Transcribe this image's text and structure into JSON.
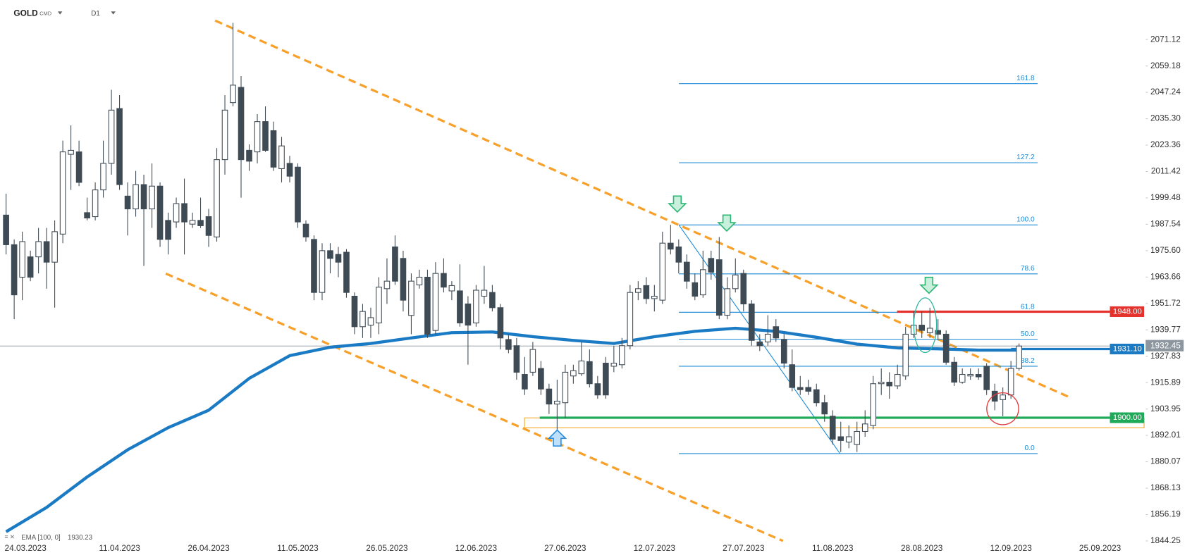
{
  "header": {
    "symbol": "GOLD",
    "market": "CMD",
    "interval": "D1"
  },
  "chart_data": {
    "type": "candlestick",
    "categories": [
      "24.03.2023",
      null,
      null,
      null,
      null,
      null,
      null,
      null,
      null,
      null,
      null,
      null,
      null,
      null,
      "11.04.2023",
      null,
      null,
      null,
      null,
      null,
      null,
      null,
      null,
      null,
      null,
      "26.04.2023",
      null,
      null,
      null,
      null,
      null,
      null,
      null,
      null,
      null,
      null,
      "11.05.2023",
      null,
      null,
      null,
      null,
      null,
      null,
      null,
      null,
      null,
      null,
      "26.05.2023",
      null,
      null,
      null,
      null,
      null,
      null,
      null,
      null,
      null,
      null,
      "12.06.2023",
      null,
      null,
      null,
      null,
      null,
      null,
      null,
      null,
      null,
      null,
      "27.06.2023",
      null,
      null,
      null,
      null,
      null,
      null,
      null,
      null,
      null,
      null,
      "12.07.2023",
      null,
      null,
      null,
      null,
      null,
      null,
      null,
      null,
      null,
      null,
      "27.07.2023",
      null,
      null,
      null,
      null,
      null,
      null,
      null,
      null,
      null,
      null,
      "11.08.2023",
      null,
      null,
      null,
      null,
      null,
      null,
      null,
      null,
      null,
      null,
      "28.08.2023",
      null,
      null,
      null,
      null,
      null,
      null,
      null,
      null,
      null,
      null,
      "12.09.2023",
      null,
      null,
      null,
      null,
      null,
      null,
      null,
      null,
      null,
      null,
      "25.09.2023"
    ],
    "values": [
      [
        1991.7,
        2001.4,
        1973.9,
        1978.3
      ],
      [
        1978.3,
        1980.7,
        1944.6,
        1955.6
      ],
      [
        1963.6,
        1984.2,
        1953.2,
        1979.7
      ],
      [
        1972.8,
        1975.6,
        1961.8,
        1963.6
      ],
      [
        1972.8,
        1985.9,
        1965.3,
        1979.7
      ],
      [
        1979.7,
        1985.9,
        1958.4,
        1970.4
      ],
      [
        1970.4,
        1989.3,
        1949.8,
        1984.2
      ],
      [
        1983.1,
        2025.4,
        1979.0,
        2020.3
      ],
      [
        2019.2,
        2032.3,
        2003.1,
        2021.0
      ],
      [
        2020.3,
        2025.4,
        2004.8,
        2006.5
      ],
      [
        1992.8,
        1999.6,
        1989.3,
        1990.4
      ],
      [
        1991.0,
        2006.5,
        1989.3,
        2003.1
      ],
      [
        2003.1,
        2025.4,
        1999.6,
        2015.1
      ],
      [
        2015.1,
        2048.4,
        2010.0,
        2039.2
      ],
      [
        2039.9,
        2046.0,
        2003.1,
        2005.5
      ],
      [
        2000.3,
        2006.5,
        1982.5,
        1994.5
      ],
      [
        1994.5,
        2011.7,
        1991.0,
        2005.5
      ],
      [
        2005.5,
        2010.0,
        1968.7,
        1994.5
      ],
      [
        1994.5,
        2015.1,
        1985.9,
        2004.8
      ],
      [
        2004.8,
        2006.5,
        1977.3,
        1980.7
      ],
      [
        1989.3,
        1992.8,
        1973.9,
        1980.7
      ],
      [
        1988.6,
        1999.6,
        1985.9,
        1996.9
      ],
      [
        1996.9,
        2008.2,
        1973.9,
        1988.6
      ],
      [
        1987.6,
        1992.8,
        1985.9,
        1989.3
      ],
      [
        1989.3,
        1999.6,
        1985.9,
        1986.9
      ],
      [
        1991.0,
        1994.5,
        1977.3,
        1982.5
      ],
      [
        1981.8,
        2022.0,
        1979.7,
        2016.8
      ],
      [
        2016.8,
        2046.0,
        2010.0,
        2039.2
      ],
      [
        2042.6,
        2078.7,
        2040.9,
        2050.5
      ],
      [
        2049.5,
        2054.6,
        1999.6,
        2016.8
      ],
      [
        2021.0,
        2023.7,
        2011.7,
        2016.1
      ],
      [
        2020.3,
        2037.4,
        2015.1,
        2034.0
      ],
      [
        2034.0,
        2040.9,
        2020.3,
        2021.0
      ],
      [
        2029.9,
        2034.0,
        2011.7,
        2013.4
      ],
      [
        2012.7,
        2027.1,
        2006.5,
        2023.0
      ],
      [
        2015.1,
        2018.5,
        2006.5,
        2009.3
      ],
      [
        2013.4,
        2015.1,
        1985.9,
        1988.6
      ],
      [
        1987.6,
        1989.3,
        1979.7,
        1981.8
      ],
      [
        1980.7,
        1982.5,
        1953.2,
        1956.7
      ],
      [
        1956.7,
        1979.0,
        1953.2,
        1975.6
      ],
      [
        1975.6,
        1979.0,
        1965.3,
        1972.1
      ],
      [
        1973.9,
        1977.3,
        1963.6,
        1970.4
      ],
      [
        1974.9,
        1976.3,
        1954.3,
        1956.7
      ],
      [
        1955.0,
        1956.7,
        1937.8,
        1941.2
      ],
      [
        1941.2,
        1951.5,
        1936.1,
        1948.1
      ],
      [
        1941.9,
        1949.8,
        1936.1,
        1945.3
      ],
      [
        1942.9,
        1963.6,
        1937.8,
        1959.1
      ],
      [
        1958.4,
        1972.1,
        1951.5,
        1961.8
      ],
      [
        1977.3,
        1982.5,
        1960.1,
        1961.8
      ],
      [
        1972.1,
        1975.6,
        1948.1,
        1953.2
      ],
      [
        1946.3,
        1965.3,
        1937.8,
        1961.8
      ],
      [
        1960.1,
        1967.0,
        1958.4,
        1963.6
      ],
      [
        1963.6,
        1967.0,
        1936.1,
        1937.8
      ],
      [
        1939.5,
        1970.4,
        1937.8,
        1965.3
      ],
      [
        1965.3,
        1972.1,
        1956.7,
        1959.1
      ],
      [
        1957.4,
        1961.8,
        1953.2,
        1959.8
      ],
      [
        1957.4,
        1969.4,
        1941.2,
        1942.9
      ],
      [
        1951.5,
        1955.0,
        1924.0,
        1941.9
      ],
      [
        1942.9,
        1960.1,
        1941.2,
        1957.7
      ],
      [
        1955.0,
        1968.7,
        1951.5,
        1957.7
      ],
      [
        1956.7,
        1960.1,
        1948.1,
        1949.8
      ],
      [
        1949.8,
        1951.5,
        1930.9,
        1936.1
      ],
      [
        1935.4,
        1937.8,
        1929.2,
        1930.9
      ],
      [
        1932.6,
        1936.1,
        1917.2,
        1920.6
      ],
      [
        1919.6,
        1927.5,
        1910.3,
        1913.0
      ],
      [
        1920.6,
        1934.3,
        1918.9,
        1930.9
      ],
      [
        1922.3,
        1925.7,
        1910.3,
        1913.0
      ],
      [
        1913.0,
        1915.4,
        1901.7,
        1906.2
      ],
      [
        1906.2,
        1917.2,
        1887.9,
        1907.5
      ],
      [
        1906.8,
        1924.0,
        1899.9,
        1920.6
      ],
      [
        1918.9,
        1924.0,
        1915.4,
        1921.3
      ],
      [
        1919.9,
        1934.3,
        1918.9,
        1925.7
      ],
      [
        1925.4,
        1930.9,
        1913.7,
        1915.4
      ],
      [
        1915.4,
        1918.9,
        1908.6,
        1910.3
      ],
      [
        1924.7,
        1927.5,
        1908.6,
        1910.3
      ],
      [
        1923.3,
        1932.6,
        1920.6,
        1924.7
      ],
      [
        1924.0,
        1936.1,
        1922.3,
        1932.6
      ],
      [
        1932.6,
        1960.1,
        1930.9,
        1956.7
      ],
      [
        1956.7,
        1961.8,
        1953.2,
        1958.4
      ],
      [
        1959.8,
        1963.6,
        1951.5,
        1953.9
      ],
      [
        1953.9,
        1960.1,
        1948.1,
        1955.0
      ],
      [
        1953.2,
        1984.2,
        1951.5,
        1979.0
      ],
      [
        1979.0,
        1987.3,
        1973.9,
        1976.3
      ],
      [
        1977.3,
        1980.7,
        1965.3,
        1970.4
      ],
      [
        1970.4,
        1973.9,
        1958.4,
        1961.8
      ],
      [
        1961.1,
        1965.3,
        1953.2,
        1955.0
      ],
      [
        1955.6,
        1975.6,
        1954.3,
        1967.0
      ],
      [
        1972.1,
        1975.6,
        1962.5,
        1965.9
      ],
      [
        1971.5,
        1981.8,
        1944.6,
        1946.4
      ],
      [
        1946.4,
        1963.6,
        1944.6,
        1958.4
      ],
      [
        1958.4,
        1972.1,
        1956.7,
        1964.6
      ],
      [
        1965.3,
        1967.0,
        1948.1,
        1951.5
      ],
      [
        1951.5,
        1953.2,
        1932.6,
        1935.0
      ],
      [
        1934.3,
        1937.8,
        1930.2,
        1932.6
      ],
      [
        1934.3,
        1946.4,
        1932.6,
        1937.8
      ],
      [
        1941.2,
        1944.6,
        1934.3,
        1936.1
      ],
      [
        1935.4,
        1937.8,
        1922.3,
        1924.7
      ],
      [
        1924.0,
        1930.9,
        1912.0,
        1913.7
      ],
      [
        1913.7,
        1918.9,
        1910.3,
        1912.7
      ],
      [
        1913.7,
        1917.2,
        1910.3,
        1912.0
      ],
      [
        1912.7,
        1915.4,
        1905.1,
        1906.8
      ],
      [
        1906.8,
        1910.3,
        1898.2,
        1901.7
      ],
      [
        1900.7,
        1903.4,
        1887.9,
        1890.3
      ],
      [
        1891.4,
        1898.2,
        1884.5,
        1889.7
      ],
      [
        1889.0,
        1896.5,
        1886.2,
        1891.4
      ],
      [
        1887.9,
        1898.2,
        1884.5,
        1893.8
      ],
      [
        1893.8,
        1903.4,
        1891.4,
        1897.2
      ],
      [
        1896.5,
        1918.9,
        1894.8,
        1915.4
      ],
      [
        1915.4,
        1922.3,
        1910.3,
        1916.1
      ],
      [
        1916.1,
        1920.6,
        1908.6,
        1914.4
      ],
      [
        1914.4,
        1924.0,
        1913.0,
        1919.6
      ],
      [
        1918.9,
        1941.2,
        1917.2,
        1937.8
      ],
      [
        1937.8,
        1948.1,
        1936.1,
        1941.9
      ],
      [
        1941.9,
        1948.1,
        1936.1,
        1939.5
      ],
      [
        1938.5,
        1949.8,
        1936.1,
        1940.5
      ],
      [
        1939.5,
        1944.6,
        1935.0,
        1937.8
      ],
      [
        1937.8,
        1939.5,
        1924.0,
        1925.1
      ],
      [
        1925.1,
        1927.5,
        1914.4,
        1916.1
      ],
      [
        1916.1,
        1922.3,
        1915.4,
        1919.6
      ],
      [
        1918.9,
        1922.3,
        1917.2,
        1919.6
      ],
      [
        1919.6,
        1922.3,
        1917.2,
        1918.5
      ],
      [
        1923.3,
        1924.7,
        1910.3,
        1912.7
      ],
      [
        1912.0,
        1915.4,
        1903.4,
        1907.5
      ],
      [
        1908.2,
        1913.7,
        1900.7,
        1910.3
      ],
      [
        1910.3,
        1925.7,
        1908.6,
        1922.3
      ],
      [
        1922.3,
        1933.6,
        1921.3,
        1932.45
      ],
      null,
      null,
      null,
      null,
      null,
      null,
      null,
      null,
      null,
      null
    ],
    "up_color": "#ffffff",
    "down_color": "#3e4a54",
    "ylim": [
      1844.25,
      2089.0
    ],
    "yticks": [
      2071.12,
      2059.18,
      2047.24,
      {
        "value": 2035.3,
        "label": "2035.30"
      },
      2023.36,
      2011.42,
      1999.48,
      1987.54,
      {
        "value": 1975.6,
        "label": "1975.60"
      },
      1963.66,
      1951.72,
      1939.77,
      1927.83,
      1915.89,
      1903.95,
      1892.01,
      1880.07,
      1868.13,
      1856.19,
      1844.25
    ],
    "ema": {
      "name": "EMA [100, 0]",
      "value": 1930.23,
      "color": "#1a7bc4",
      "x": [
        0,
        5,
        10,
        15,
        20,
        25,
        30,
        35,
        40,
        45,
        50,
        55,
        60,
        65,
        70,
        75,
        80,
        85,
        90,
        95,
        100,
        105,
        110,
        115,
        120,
        125
      ],
      "values": [
        1848.4,
        1859.4,
        1873.2,
        1885.5,
        1895.5,
        1903.4,
        1917.8,
        1928.1,
        1931.9,
        1933.6,
        1936.1,
        1938.5,
        1938.8,
        1936.7,
        1935.0,
        1933.6,
        1936.7,
        1939.1,
        1940.5,
        1939.1,
        1936.4,
        1933.3,
        1931.6,
        1931.2,
        1930.6,
        1930.6
      ]
    },
    "levels": [
      {
        "value": 1948,
        "label": "1948.00",
        "color": "#e5322d"
      },
      {
        "value": 1931.1,
        "label": "1931.10",
        "color": "#1a7bc4"
      },
      {
        "value": 1900,
        "label": "1900.00",
        "color": "#1faa5a"
      }
    ],
    "last_price": {
      "value": 1932.45,
      "color": "#8d969e"
    },
    "fibonacci": {
      "color": "#1a8ad4",
      "levels": [
        161.8,
        127.2,
        {
          "value": 100,
          "label": "100.0"
        },
        78.6,
        61.8,
        {
          "value": 50,
          "label": "50.0"
        },
        38.2,
        {
          "value": 0,
          "label": "0.0"
        }
      ]
    }
  }
}
